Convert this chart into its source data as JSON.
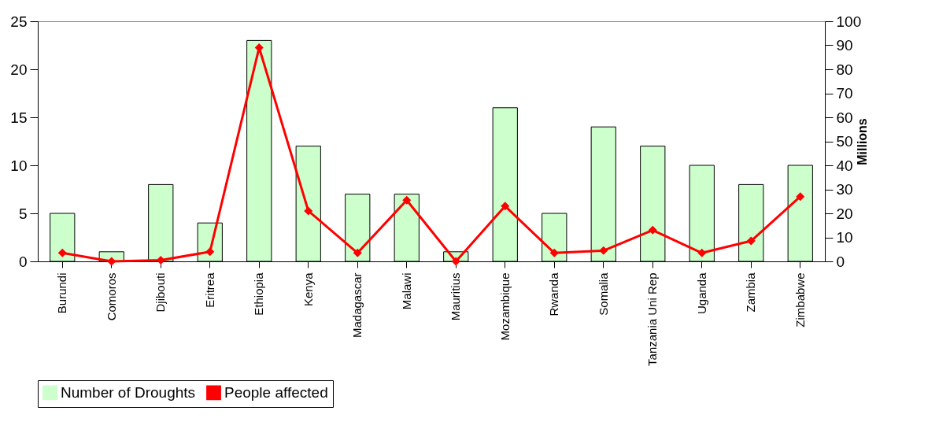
{
  "chart_data": {
    "type": "bar",
    "categories": [
      "Burundi",
      "Comoros",
      "Djibouti",
      "Eritrea",
      "Ethiopia",
      "Kenya",
      "Madagascar",
      "Malawi",
      "Mauritius",
      "Mozambique",
      "Rwanda",
      "Somalia",
      "Tanzania Uni Rep",
      "Uganda",
      "Zambia",
      "Zimbabwe"
    ],
    "series": [
      {
        "name": "Number of Droughts",
        "color": "#ccffcc",
        "values": [
          5,
          1,
          8,
          4,
          23,
          12,
          7,
          7,
          1,
          16,
          5,
          14,
          12,
          10,
          8,
          10
        ]
      },
      {
        "name": "People affected",
        "type": "line",
        "axis": "y2",
        "color": "#ff0000",
        "values": [
          3.5,
          0,
          0.5,
          4,
          89,
          21,
          3.5,
          25.5,
          0,
          23,
          3.5,
          4.5,
          13,
          3.5,
          8.5,
          27
        ]
      }
    ],
    "ylim": [
      0,
      25
    ],
    "yticks": [
      0,
      5,
      10,
      15,
      20,
      25
    ],
    "y2lim": [
      0,
      100
    ],
    "y2ticks": [
      0,
      10,
      20,
      30,
      40,
      50,
      60,
      70,
      80,
      90,
      100
    ],
    "y2label": "Millions",
    "legend": "bottom left",
    "marker": "diamond",
    "line_style": "solid"
  }
}
